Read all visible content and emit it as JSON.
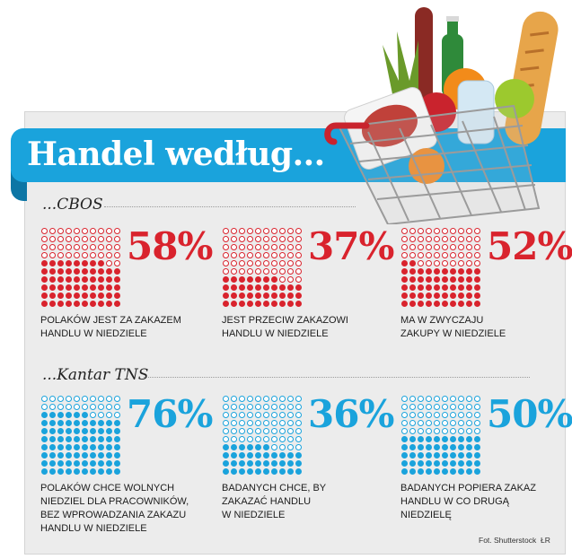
{
  "title": "Handel według...",
  "colors": {
    "cbos": "#d9232d",
    "kantar": "#1aa3dc",
    "banner": "#1aa3dc"
  },
  "sections": [
    {
      "label": "...CBOS"
    },
    {
      "label": "...Kantar TNS"
    }
  ],
  "chart_data": [
    {
      "type": "waffle",
      "source": "CBOS",
      "color": "#d9232d",
      "items": [
        {
          "value": 58,
          "label": "58%",
          "description": [
            "POLAKÓW JEST ZA ZAKAZEM",
            "HANDLU W NIEDZIELE"
          ]
        },
        {
          "value": 37,
          "label": "37%",
          "description": [
            "JEST PRZECIW ZAKAZOWI",
            "HANDLU W NIEDZIELE"
          ]
        },
        {
          "value": 52,
          "label": "52%",
          "description": [
            "MA W ZWYCZAJU",
            "ZAKUPY W NIEDZIELE"
          ]
        }
      ]
    },
    {
      "type": "waffle",
      "source": "Kantar TNS",
      "color": "#1aa3dc",
      "items": [
        {
          "value": 76,
          "label": "76%",
          "description": [
            "POLAKÓW CHCE WOLNYCH",
            "NIEDZIEL DLA PRACOWNIKÓW,",
            "BEZ WPROWADZANIA ZAKAZU",
            "HANDLU W NIEDZIELE"
          ]
        },
        {
          "value": 36,
          "label": "36%",
          "description": [
            "BADANYCH CHCE, BY",
            "ZAKAZAĆ HANDLU",
            "W NIEDZIELE"
          ]
        },
        {
          "value": 50,
          "label": "50%",
          "description": [
            "BADANYCH POPIERA ZAKAZ",
            "HANDLU W CO DRUGĄ",
            "NIEDZIELĘ"
          ]
        }
      ]
    }
  ],
  "credit": "Fot. Shutterstock",
  "credit_mark": "ŁR"
}
